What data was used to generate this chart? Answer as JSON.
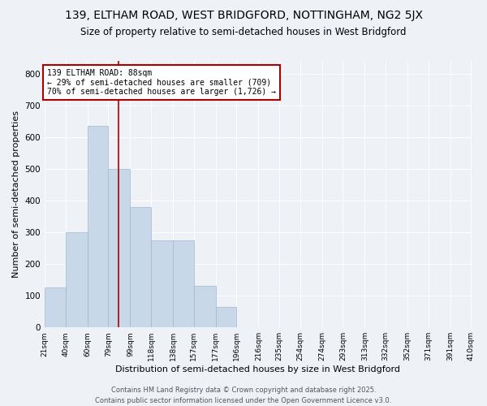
{
  "title1": "139, ELTHAM ROAD, WEST BRIDGFORD, NOTTINGHAM, NG2 5JX",
  "title2": "Size of property relative to semi-detached houses in West Bridgford",
  "xlabel": "Distribution of semi-detached houses by size in West Bridgford",
  "ylabel": "Number of semi-detached properties",
  "annotation_line1": "139 ELTHAM ROAD: 88sqm",
  "annotation_line2": "← 29% of semi-detached houses are smaller (709)",
  "annotation_line3": "70% of semi-detached houses are larger (1,726) →",
  "footer1": "Contains HM Land Registry data © Crown copyright and database right 2025.",
  "footer2": "Contains public sector information licensed under the Open Government Licence v3.0.",
  "bar_left_edges": [
    21,
    40,
    60,
    79,
    99,
    118,
    138,
    157,
    177,
    196,
    216,
    235,
    254,
    274,
    293,
    313,
    332,
    352,
    371,
    391
  ],
  "bar_widths": [
    19,
    20,
    19,
    20,
    19,
    20,
    19,
    20,
    19,
    20,
    19,
    19,
    20,
    19,
    20,
    19,
    20,
    19,
    20,
    19
  ],
  "bar_heights": [
    125,
    300,
    635,
    500,
    380,
    275,
    275,
    130,
    65,
    0,
    0,
    0,
    0,
    0,
    0,
    0,
    0,
    0,
    0,
    0
  ],
  "tick_labels": [
    "21sqm",
    "40sqm",
    "60sqm",
    "79sqm",
    "99sqm",
    "118sqm",
    "138sqm",
    "157sqm",
    "177sqm",
    "196sqm",
    "216sqm",
    "235sqm",
    "254sqm",
    "274sqm",
    "293sqm",
    "313sqm",
    "332sqm",
    "352sqm",
    "371sqm",
    "391sqm",
    "410sqm"
  ],
  "bar_color": "#c8d8e8",
  "bar_edge_color": "#a0b8cc",
  "property_value": 88,
  "vline_color": "#aa0000",
  "annotation_box_edge": "#aa0000",
  "ylim": [
    0,
    840
  ],
  "yticks": [
    0,
    100,
    200,
    300,
    400,
    500,
    600,
    700,
    800
  ],
  "background_color": "#eef2f7",
  "grid_color": "#ffffff",
  "title1_fontsize": 10,
  "title2_fontsize": 8.5,
  "xlabel_fontsize": 8,
  "ylabel_fontsize": 8,
  "tick_fontsize": 6.5,
  "annotation_fontsize": 7,
  "footer_fontsize": 6
}
